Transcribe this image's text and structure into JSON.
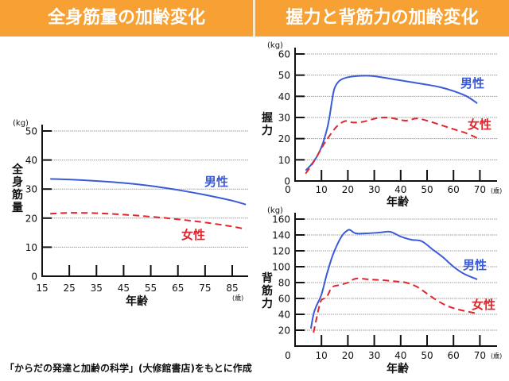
{
  "header": {
    "left_title": "全身筋量の加齢変化",
    "right_title": "握力と背筋力の加齢変化"
  },
  "source_note": "「からだの発達と加齢の科学」(大修館書店)をもとに作成",
  "colors": {
    "header": "#F7A033",
    "male": "#3a5bd8",
    "female": "#e0262d",
    "grid": "#999999"
  },
  "chart_data": [
    {
      "id": "whole-body-muscle",
      "type": "line",
      "title": "全身筋量の加齢変化",
      "xlabel": "年齢",
      "x_unit": "(歳)",
      "ylabel": "全身筋量",
      "y_unit": "(kg)",
      "xlim": [
        15,
        90
      ],
      "ylim": [
        0,
        50
      ],
      "xticks": [
        15,
        25,
        35,
        45,
        55,
        65,
        75,
        85
      ],
      "yticks": [
        0,
        10,
        20,
        30,
        40,
        50
      ],
      "grid": true,
      "series": [
        {
          "name": "男性",
          "style": "solid",
          "color": "#3a5bd8",
          "x": [
            18,
            25,
            35,
            45,
            55,
            65,
            75,
            85,
            90
          ],
          "y": [
            33.5,
            33.3,
            32.8,
            32.1,
            31.1,
            29.7,
            28.0,
            26.0,
            24.7
          ]
        },
        {
          "name": "女性",
          "style": "dashed",
          "color": "#e0262d",
          "x": [
            18,
            25,
            35,
            45,
            55,
            65,
            75,
            85,
            90
          ],
          "y": [
            21.5,
            21.8,
            21.7,
            21.2,
            20.5,
            19.6,
            18.5,
            17.1,
            16.2
          ]
        }
      ],
      "legend": [
        {
          "label": "男性",
          "placement": "right, above line"
        },
        {
          "label": "女性",
          "placement": "right, below line"
        }
      ]
    },
    {
      "id": "grip-strength",
      "type": "line",
      "title": "握力の加齢変化",
      "xlabel": "年齢",
      "x_unit": "(歳)",
      "ylabel": "握力",
      "y_unit": "(kg)",
      "xlim": [
        0,
        72
      ],
      "ylim": [
        0,
        60
      ],
      "xticks": [
        0,
        10,
        20,
        30,
        40,
        50,
        60,
        70
      ],
      "yticks": [
        0,
        10,
        20,
        30,
        40,
        50,
        60
      ],
      "grid": true,
      "series": [
        {
          "name": "男性",
          "style": "solid",
          "color": "#3a5bd8",
          "x": [
            4,
            6,
            8,
            10,
            12,
            13,
            14,
            15,
            17,
            20,
            25,
            30,
            40,
            50,
            55,
            60,
            65,
            69
          ],
          "y": [
            5,
            7.5,
            11,
            16,
            24,
            30,
            38,
            44,
            47.5,
            49,
            49.7,
            49.5,
            47.5,
            45.5,
            44.3,
            42.5,
            40,
            36.7
          ]
        },
        {
          "name": "女性",
          "style": "dashed",
          "color": "#e0262d",
          "x": [
            4,
            6,
            8,
            10,
            12,
            14,
            16,
            19,
            22,
            26,
            30,
            34,
            38,
            42,
            46,
            50,
            55,
            60,
            65,
            69
          ],
          "y": [
            3.5,
            7,
            11,
            15.5,
            19.5,
            23,
            26,
            28.3,
            27.6,
            28,
            29.4,
            30,
            29.4,
            28.5,
            29.5,
            28.5,
            26.5,
            24.5,
            22.5,
            20.3
          ]
        }
      ],
      "legend": [
        {
          "label": "男性",
          "placement": "right"
        },
        {
          "label": "女性",
          "placement": "right"
        }
      ]
    },
    {
      "id": "back-strength",
      "type": "line",
      "title": "背筋力の加齢変化",
      "xlabel": "年齢",
      "x_unit": "(歳)",
      "ylabel": "背筋力",
      "y_unit": "(kg)",
      "xlim": [
        0,
        72
      ],
      "ylim": [
        0,
        160
      ],
      "xticks": [
        0,
        10,
        20,
        30,
        40,
        50,
        60,
        70
      ],
      "yticks": [
        20,
        40,
        60,
        80,
        100,
        120,
        140,
        160
      ],
      "grid": true,
      "series": [
        {
          "name": "男性",
          "style": "solid",
          "color": "#3a5bd8",
          "x": [
            6,
            7,
            8,
            10,
            12,
            14,
            16,
            18,
            20,
            21,
            23,
            27,
            32,
            36,
            40,
            44,
            48,
            52,
            56,
            60,
            64,
            69
          ],
          "y": [
            22,
            40,
            50,
            65,
            90,
            112,
            128,
            140,
            146,
            146,
            142,
            142,
            143,
            144,
            138,
            134,
            132,
            122,
            112,
            100,
            91,
            84
          ]
        },
        {
          "name": "女性",
          "style": "dashed",
          "color": "#e0262d",
          "x": [
            7,
            8,
            9,
            10,
            12,
            14,
            17,
            20,
            23,
            28,
            33,
            38,
            42,
            46,
            50,
            54,
            58,
            62,
            66,
            69
          ],
          "y": [
            17,
            33,
            48,
            58,
            62,
            74,
            77,
            80,
            85,
            84,
            83,
            81.5,
            80,
            75,
            66,
            57,
            50,
            46,
            43,
            41
          ]
        }
      ],
      "legend": [
        {
          "label": "男性",
          "placement": "right"
        },
        {
          "label": "女性",
          "placement": "right"
        }
      ]
    }
  ]
}
